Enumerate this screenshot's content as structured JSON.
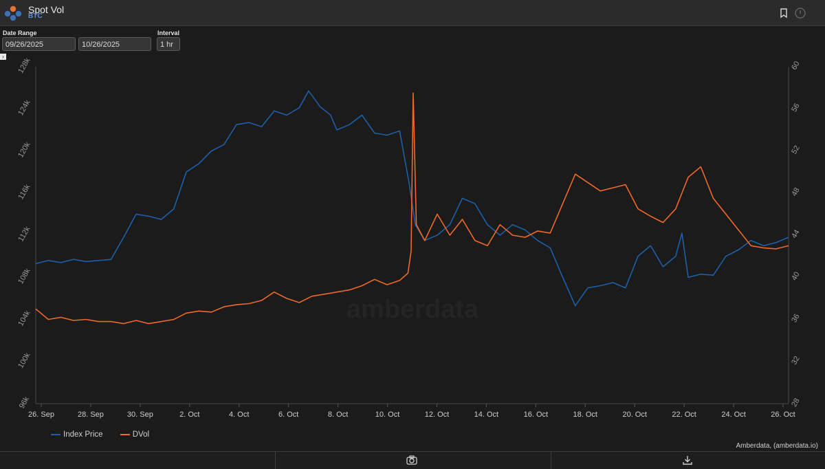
{
  "header": {
    "title": "Spot Vol",
    "subtitle": "BTC"
  },
  "controls": {
    "date_range_label": "Date Range",
    "start_date": "09/26/2025",
    "end_date": "10/26/2025",
    "interval_label": "Interval",
    "interval_value": "1 hr"
  },
  "footer": {
    "credit": "Amberdata, (amberdata.io)",
    "watermark": "amberdata"
  },
  "colors": {
    "index_price": "#1d5fa8",
    "dvol": "#f0682a",
    "background": "#1b1b1b"
  },
  "icons": [
    "bookmark-icon",
    "info-icon",
    "camera-icon",
    "download-icon",
    "amberdata-logo"
  ],
  "chart_data": {
    "type": "line",
    "title": "",
    "xlabel": "",
    "x_tick_labels": [
      "26. Sep",
      "28. Sep",
      "30. Sep",
      "2. Oct",
      "4. Oct",
      "6. Oct",
      "8. Oct",
      "10. Oct",
      "12. Oct",
      "14. Oct",
      "16. Oct",
      "18. Oct",
      "20. Oct",
      "22. Oct",
      "24. Oct",
      "26. Oct"
    ],
    "xlim": [
      "2025-09-26",
      "2025-10-26"
    ],
    "left_axis": {
      "ticks": [
        "96k",
        "100k",
        "104k",
        "108k",
        "112k",
        "116k",
        "120k",
        "124k",
        "128k"
      ],
      "ylim": [
        96000,
        128000
      ]
    },
    "right_axis": {
      "ticks": [
        "28",
        "32",
        "36",
        "40",
        "44",
        "48",
        "52",
        "56",
        "60"
      ],
      "ylim": [
        28,
        60
      ]
    },
    "legend": [
      "Index Price",
      "DVol"
    ],
    "legend_position": "bottom-left",
    "grid": false,
    "series": [
      {
        "name": "Index Price",
        "axis": "left",
        "points": [
          [
            "2025-09-26T00:00",
            109300
          ],
          [
            "2025-09-26T12:00",
            109600
          ],
          [
            "2025-09-27T00:00",
            109400
          ],
          [
            "2025-09-27T12:00",
            109700
          ],
          [
            "2025-09-28T00:00",
            109500
          ],
          [
            "2025-09-28T12:00",
            109600
          ],
          [
            "2025-09-29T00:00",
            109700
          ],
          [
            "2025-09-29T12:00",
            111800
          ],
          [
            "2025-09-30T00:00",
            114000
          ],
          [
            "2025-09-30T12:00",
            113800
          ],
          [
            "2025-10-01T00:00",
            113500
          ],
          [
            "2025-10-01T12:00",
            114500
          ],
          [
            "2025-10-02T00:00",
            118000
          ],
          [
            "2025-10-02T12:00",
            118800
          ],
          [
            "2025-10-03T00:00",
            120000
          ],
          [
            "2025-10-03T12:00",
            120600
          ],
          [
            "2025-10-04T00:00",
            122500
          ],
          [
            "2025-10-04T12:00",
            122700
          ],
          [
            "2025-10-05T00:00",
            122300
          ],
          [
            "2025-10-05T12:00",
            123800
          ],
          [
            "2025-10-06T00:00",
            123400
          ],
          [
            "2025-10-06T12:00",
            124100
          ],
          [
            "2025-10-06T21:00",
            125700
          ],
          [
            "2025-10-07T08:00",
            124200
          ],
          [
            "2025-10-07T18:00",
            123400
          ],
          [
            "2025-10-08T00:00",
            122000
          ],
          [
            "2025-10-08T12:00",
            122500
          ],
          [
            "2025-10-09T00:00",
            123400
          ],
          [
            "2025-10-09T12:00",
            121700
          ],
          [
            "2025-10-10T00:00",
            121500
          ],
          [
            "2025-10-10T12:00",
            121900
          ],
          [
            "2025-10-10T21:00",
            117000
          ],
          [
            "2025-10-11T03:00",
            113000
          ],
          [
            "2025-10-11T12:00",
            111500
          ],
          [
            "2025-10-12T00:00",
            112000
          ],
          [
            "2025-10-12T12:00",
            113000
          ],
          [
            "2025-10-13T00:00",
            115500
          ],
          [
            "2025-10-13T12:00",
            115000
          ],
          [
            "2025-10-14T00:00",
            113000
          ],
          [
            "2025-10-14T12:00",
            112000
          ],
          [
            "2025-10-15T00:00",
            113000
          ],
          [
            "2025-10-15T12:00",
            112500
          ],
          [
            "2025-10-16T00:00",
            111500
          ],
          [
            "2025-10-16T12:00",
            110800
          ],
          [
            "2025-10-17T00:00",
            108000
          ],
          [
            "2025-10-17T12:00",
            105300
          ],
          [
            "2025-10-18T00:00",
            107000
          ],
          [
            "2025-10-18T12:00",
            107200
          ],
          [
            "2025-10-19T00:00",
            107500
          ],
          [
            "2025-10-19T12:00",
            107000
          ],
          [
            "2025-10-20T00:00",
            110000
          ],
          [
            "2025-10-20T12:00",
            111000
          ],
          [
            "2025-10-21T00:00",
            109000
          ],
          [
            "2025-10-21T12:00",
            110000
          ],
          [
            "2025-10-21T18:00",
            112200
          ],
          [
            "2025-10-22T00:00",
            108000
          ],
          [
            "2025-10-22T12:00",
            108300
          ],
          [
            "2025-10-23T00:00",
            108200
          ],
          [
            "2025-10-23T12:00",
            110000
          ],
          [
            "2025-10-24T00:00",
            110600
          ],
          [
            "2025-10-24T12:00",
            111500
          ],
          [
            "2025-10-25T00:00",
            111000
          ],
          [
            "2025-10-25T12:00",
            111300
          ],
          [
            "2025-10-26T00:00",
            111800
          ]
        ]
      },
      {
        "name": "DVol",
        "axis": "right",
        "points": [
          [
            "2025-09-26T00:00",
            37.0
          ],
          [
            "2025-09-26T12:00",
            36.0
          ],
          [
            "2025-09-27T00:00",
            36.2
          ],
          [
            "2025-09-27T12:00",
            35.9
          ],
          [
            "2025-09-28T00:00",
            36.0
          ],
          [
            "2025-09-28T12:00",
            35.8
          ],
          [
            "2025-09-29T00:00",
            35.8
          ],
          [
            "2025-09-29T12:00",
            35.6
          ],
          [
            "2025-09-30T00:00",
            35.9
          ],
          [
            "2025-09-30T12:00",
            35.6
          ],
          [
            "2025-10-01T00:00",
            35.8
          ],
          [
            "2025-10-01T12:00",
            36.0
          ],
          [
            "2025-10-02T00:00",
            36.6
          ],
          [
            "2025-10-02T12:00",
            36.8
          ],
          [
            "2025-10-03T00:00",
            36.7
          ],
          [
            "2025-10-03T12:00",
            37.2
          ],
          [
            "2025-10-04T00:00",
            37.4
          ],
          [
            "2025-10-04T12:00",
            37.5
          ],
          [
            "2025-10-05T00:00",
            37.8
          ],
          [
            "2025-10-05T12:00",
            38.6
          ],
          [
            "2025-10-06T00:00",
            38.0
          ],
          [
            "2025-10-06T12:00",
            37.6
          ],
          [
            "2025-10-07T00:00",
            38.2
          ],
          [
            "2025-10-07T12:00",
            38.4
          ],
          [
            "2025-10-08T00:00",
            38.6
          ],
          [
            "2025-10-08T12:00",
            38.8
          ],
          [
            "2025-10-09T00:00",
            39.2
          ],
          [
            "2025-10-09T12:00",
            39.8
          ],
          [
            "2025-10-10T00:00",
            39.3
          ],
          [
            "2025-10-10T12:00",
            39.7
          ],
          [
            "2025-10-10T20:00",
            40.4
          ],
          [
            "2025-10-10T23:00",
            42.5
          ],
          [
            "2025-10-11T01:00",
            57.5
          ],
          [
            "2025-10-11T04:00",
            45.0
          ],
          [
            "2025-10-11T12:00",
            43.5
          ],
          [
            "2025-10-12T00:00",
            46.0
          ],
          [
            "2025-10-12T12:00",
            44.0
          ],
          [
            "2025-10-13T00:00",
            45.5
          ],
          [
            "2025-10-13T12:00",
            43.5
          ],
          [
            "2025-10-14T00:00",
            43.0
          ],
          [
            "2025-10-14T12:00",
            45.0
          ],
          [
            "2025-10-15T00:00",
            44.0
          ],
          [
            "2025-10-15T12:00",
            43.8
          ],
          [
            "2025-10-16T00:00",
            44.4
          ],
          [
            "2025-10-16T12:00",
            44.2
          ],
          [
            "2025-10-17T00:00",
            47.0
          ],
          [
            "2025-10-17T12:00",
            49.8
          ],
          [
            "2025-10-18T00:00",
            49.0
          ],
          [
            "2025-10-18T12:00",
            48.2
          ],
          [
            "2025-10-19T00:00",
            48.5
          ],
          [
            "2025-10-19T12:00",
            48.8
          ],
          [
            "2025-10-20T00:00",
            46.5
          ],
          [
            "2025-10-20T12:00",
            45.8
          ],
          [
            "2025-10-21T00:00",
            45.2
          ],
          [
            "2025-10-21T12:00",
            46.5
          ],
          [
            "2025-10-22T00:00",
            49.5
          ],
          [
            "2025-10-22T12:00",
            50.5
          ],
          [
            "2025-10-23T00:00",
            47.5
          ],
          [
            "2025-10-23T12:00",
            46.0
          ],
          [
            "2025-10-24T00:00",
            44.5
          ],
          [
            "2025-10-24T12:00",
            43.0
          ],
          [
            "2025-10-25T00:00",
            42.8
          ],
          [
            "2025-10-25T12:00",
            42.7
          ],
          [
            "2025-10-26T00:00",
            43.0
          ]
        ]
      }
    ]
  }
}
